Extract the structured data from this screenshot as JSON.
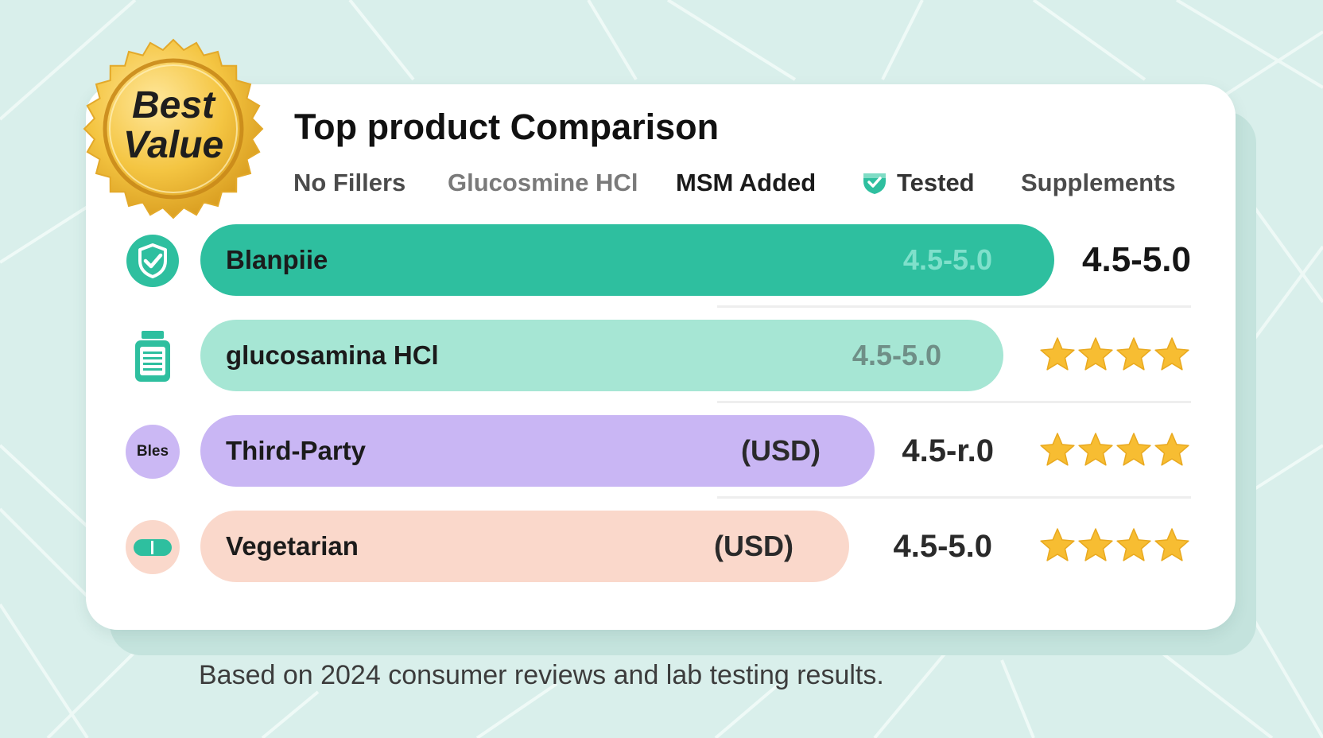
{
  "badge": {
    "line1": "Best",
    "line2": "Value"
  },
  "title": "Top product Comparison",
  "tags": [
    {
      "label": "No Fillers",
      "color": "#4b4b4b"
    },
    {
      "label": "Glucosmine HCl",
      "color": "#7a7a7a"
    },
    {
      "label": "MSM Added",
      "color": "#1b1b1b"
    },
    {
      "label": "Tested",
      "color": "#333333",
      "icon": "shield-check-icon"
    },
    {
      "label": "Supplements",
      "color": "#4b4b4b"
    }
  ],
  "chart_data": {
    "type": "bar",
    "orientation": "horizontal",
    "title": "Top product Comparison",
    "categories": [
      "Blanpiie",
      "glucosamina HCl",
      "Third-Party",
      "Vegetarian"
    ],
    "bars": [
      {
        "label": "Blanpiie",
        "relative_length": 1.0,
        "inner_text": "4.5-5.0",
        "outside_text": "4.5-5.0",
        "stars": 0,
        "color": "#2ebf9f",
        "icon": "check-circle-icon"
      },
      {
        "label": "glucosamina HCl",
        "relative_length": 0.94,
        "inner_text": "4.5-5.0",
        "outside_text": "",
        "stars": 4,
        "color": "#a6e6d4",
        "icon": "supplement-bottle-icon"
      },
      {
        "label": "Third-Party",
        "relative_length": 0.79,
        "inner_text": "(USD)",
        "outside_text": "4.5-r.0",
        "stars": 4,
        "color": "#c9b6f4",
        "icon": "brand-logo-icon"
      },
      {
        "label": "Vegetarian",
        "relative_length": 0.76,
        "inner_text": "(USD)",
        "outside_text": "4.5-5.0",
        "stars": 4,
        "color": "#fad8cb",
        "icon": "capsule-icon"
      }
    ],
    "star_color": "#f7bd32",
    "grid": false
  },
  "icon_labels": {
    "third_party": "Bles"
  },
  "footnote": "Based on 2024 consumer reviews and lab testing results."
}
